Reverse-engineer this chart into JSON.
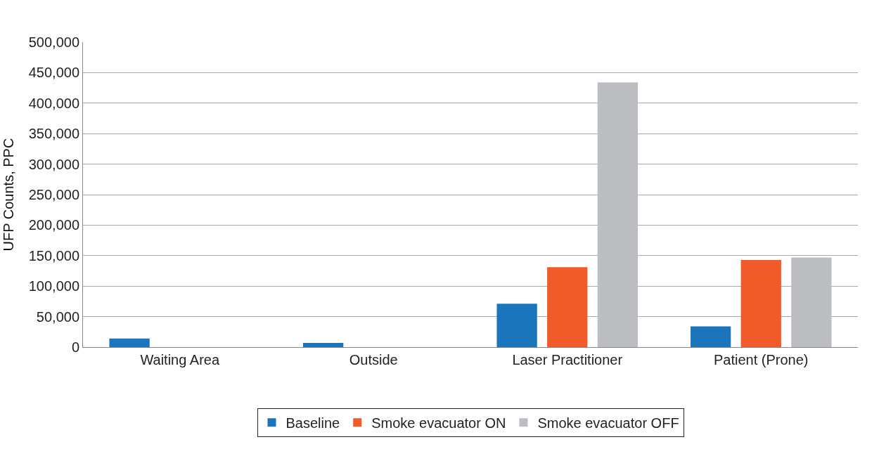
{
  "chart_data": {
    "type": "bar",
    "ylabel": "UFP Counts, PPC",
    "categories": [
      "Waiting Area",
      "Outside",
      "Laser Practitioner",
      "Patient (Prone)"
    ],
    "series": [
      {
        "name": "Baseline",
        "color": "#1a75bc",
        "values": [
          14000,
          7000,
          71000,
          34000
        ]
      },
      {
        "name": "Smoke evacuator ON",
        "color": "#f15a29",
        "values": [
          null,
          null,
          131000,
          143000
        ]
      },
      {
        "name": "Smoke evacuator OFF",
        "color": "#bcbdc0",
        "values": [
          null,
          null,
          434000,
          147000
        ]
      }
    ],
    "ylim": [
      0,
      500000
    ],
    "yticks": [
      {
        "value": 0,
        "label": "0"
      },
      {
        "value": 50000,
        "label": "50,000"
      },
      {
        "value": 100000,
        "label": "100,000"
      },
      {
        "value": 150000,
        "label": "150,000"
      },
      {
        "value": 200000,
        "label": "200,000"
      },
      {
        "value": 250000,
        "label": "250,000"
      },
      {
        "value": 300000,
        "label": "300,000"
      },
      {
        "value": 350000,
        "label": "350,000"
      },
      {
        "value": 400000,
        "label": "400,000"
      },
      {
        "value": 450000,
        "label": "450,000"
      },
      {
        "value": 500000,
        "label": "500,000"
      }
    ],
    "grid": "y",
    "legend": "bottom"
  }
}
